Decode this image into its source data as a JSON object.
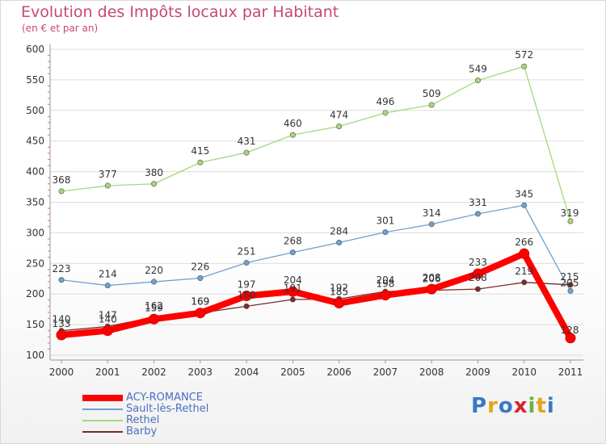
{
  "title": "Evolution des Impôts locaux par Habitant",
  "subtitle": "(en € et par an)",
  "logo": {
    "text": "Proxiti",
    "letters": [
      {
        "char": "P",
        "color": "#3a78c3"
      },
      {
        "char": "r",
        "color": "#e8a417"
      },
      {
        "char": "o",
        "color": "#3a78c3"
      },
      {
        "char": "x",
        "color": "#d8232a"
      },
      {
        "char": "i",
        "color": "#6bb23a"
      },
      {
        "char": "t",
        "color": "#e8a417"
      },
      {
        "char": "i",
        "color": "#3a78c3"
      }
    ]
  },
  "chart_data": {
    "type": "line",
    "title": "Evolution des Impôts locaux par Habitant",
    "subtitle": "(en € et par an)",
    "xlabel": "",
    "ylabel": "",
    "x": [
      "2000",
      "2001",
      "2002",
      "2003",
      "2004",
      "2005",
      "2006",
      "2007",
      "2008",
      "2009",
      "2010",
      "2011"
    ],
    "ylim": [
      100,
      600
    ],
    "yticks": [
      "100",
      "150",
      "200",
      "250",
      "300",
      "350",
      "400",
      "450",
      "500",
      "550",
      "600"
    ],
    "grid": "horizontal",
    "legend_position": "bottom-left",
    "series": [
      {
        "name": "ACY-ROMANCE",
        "color": "#ff0000",
        "emphasis": true,
        "values": [
          133,
          140,
          159,
          169,
          197,
          204,
          185,
          198,
          208,
          233,
          266,
          128
        ],
        "labels": [
          "133",
          "140",
          "159",
          "169",
          "197",
          "204",
          "185",
          "198",
          "208",
          "233",
          "266",
          "128"
        ]
      },
      {
        "name": "Sault-lès-Rethel",
        "color": "#6fa0cf",
        "values": [
          223,
          214,
          220,
          226,
          251,
          268,
          284,
          301,
          314,
          331,
          345,
          205
        ],
        "labels": [
          "223",
          "214",
          "220",
          "226",
          "251",
          "268",
          "284",
          "301",
          "314",
          "331",
          "345",
          "205"
        ]
      },
      {
        "name": "Rethel",
        "color": "#a6d878",
        "values": [
          368,
          377,
          380,
          415,
          431,
          460,
          474,
          496,
          509,
          549,
          572,
          319
        ],
        "labels": [
          "368",
          "377",
          "380",
          "415",
          "431",
          "460",
          "474",
          "496",
          "509",
          "549",
          "572",
          "319"
        ]
      },
      {
        "name": "Barby",
        "color": "#7a2b2b",
        "values": [
          140,
          147,
          162,
          169,
          180,
          191,
          192,
          204,
          206,
          208,
          219,
          215
        ],
        "labels": [
          "140",
          "147",
          "162",
          "169",
          "180",
          "191",
          "192",
          "204",
          "206",
          "208",
          "219",
          "215"
        ]
      }
    ]
  }
}
